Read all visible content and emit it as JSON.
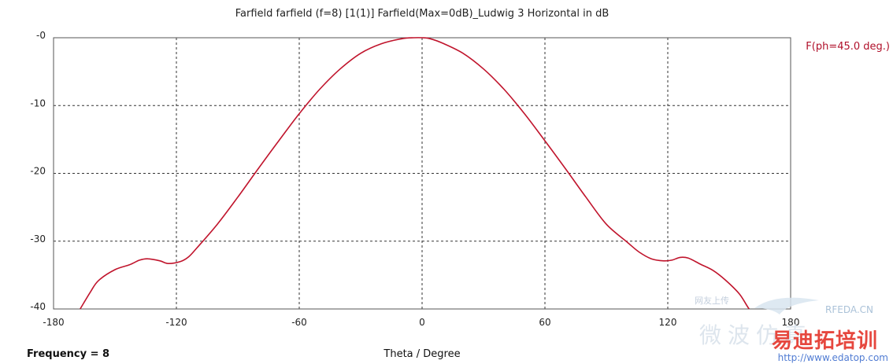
{
  "chart_data": {
    "type": "line",
    "title": "Farfield farfield (f=8) [1(1)] Farfield(Max=0dB)_Ludwig 3 Horizontal in dB",
    "xlabel": "Theta / Degree",
    "ylabel": "",
    "xlim": [
      -180,
      180
    ],
    "ylim": [
      -40,
      0
    ],
    "x_ticks": [
      -180,
      -120,
      -60,
      0,
      60,
      120,
      180
    ],
    "y_ticks": [
      0,
      -10,
      -20,
      -30,
      -40
    ],
    "x_tick_labels": [
      "-180",
      "-120",
      "-60",
      "0",
      "60",
      "120",
      "180"
    ],
    "y_tick_labels": [
      "-0",
      "-10",
      "-20",
      "-30",
      "-40"
    ],
    "grid": true,
    "legend_position": "top-right",
    "series": [
      {
        "name": "F(ph=45.0 deg.)",
        "color": "#c0142c",
        "x": [
          -167,
          -162,
          -158,
          -150,
          -143,
          -138,
          -134,
          -128,
          -124,
          -118,
          -114,
          -110,
          -100,
          -90,
          -80,
          -70,
          -60,
          -50,
          -40,
          -30,
          -20,
          -10,
          -4,
          0,
          4,
          10,
          20,
          30,
          40,
          50,
          60,
          70,
          80,
          90,
          100,
          106,
          112,
          118,
          122,
          126,
          130,
          136,
          142,
          148,
          155,
          160,
          164
        ],
        "y": [
          -40,
          -37.5,
          -35.8,
          -34.2,
          -33.5,
          -32.8,
          -32.6,
          -32.9,
          -33.3,
          -33.0,
          -32.3,
          -31.0,
          -27.5,
          -23.5,
          -19.3,
          -15.2,
          -11.2,
          -7.6,
          -4.6,
          -2.3,
          -0.9,
          -0.15,
          0,
          0,
          -0.15,
          -0.8,
          -2.3,
          -4.6,
          -7.6,
          -11.2,
          -15.2,
          -19.3,
          -23.5,
          -27.5,
          -30.1,
          -31.6,
          -32.6,
          -32.9,
          -32.8,
          -32.4,
          -32.5,
          -33.4,
          -34.3,
          -35.7,
          -37.8,
          -40.1,
          -41
        ]
      }
    ]
  },
  "frequency_label": "Frequency = 8",
  "watermark": {
    "rfeda": "RFEDA.CN",
    "site": "http://www.edatop.com",
    "brand": "易迪拓培训",
    "cn_faint": "微波仿真",
    "cn_small": "网友上传"
  }
}
